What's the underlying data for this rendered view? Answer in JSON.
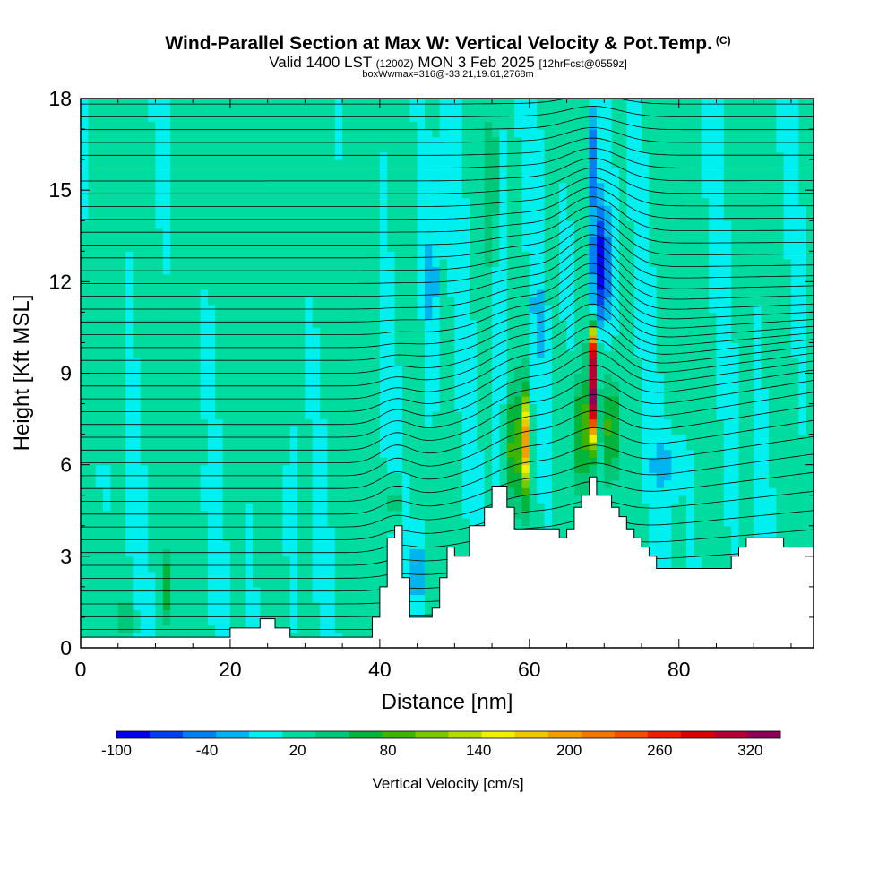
{
  "header": {
    "title": "Wind-Parallel Section at Max W: Vertical Velocity & Pot.Temp.",
    "copyright": "(C)",
    "valid_prefix": "Valid 1400 LST",
    "valid_utc": "(1200Z)",
    "valid_date": "MON 3 Feb 2025",
    "forecast": "[12hrFcst@0559z]",
    "box_info": "boxWwmax=316@-33.21,19.61,2768m"
  },
  "chart_data": {
    "type": "heatmap",
    "xlabel": "Distance [nm]",
    "ylabel": "Height [Kft MSL]",
    "xlim": [
      0,
      98
    ],
    "ylim": [
      0,
      18
    ],
    "x_ticks": [
      0,
      20,
      40,
      60,
      80
    ],
    "y_ticks": [
      0,
      3,
      6,
      9,
      12,
      15,
      18
    ],
    "colorbar": {
      "title": "Vertical Velocity [cm/s]",
      "tick_labels": [
        "-100",
        "-40",
        "20",
        "80",
        "140",
        "200",
        "260",
        "320"
      ],
      "tick_values": [
        -100,
        -40,
        20,
        80,
        140,
        200,
        260,
        320
      ],
      "range": [
        -100,
        340
      ],
      "colors": [
        "#0000f0",
        "#0040f0",
        "#0080f0",
        "#00b4f0",
        "#00f0f0",
        "#00dca0",
        "#00c878",
        "#00b43c",
        "#3cb400",
        "#78c800",
        "#b4dc00",
        "#f0f000",
        "#f0c800",
        "#f0a000",
        "#f07800",
        "#f05000",
        "#f01e00",
        "#dc0000",
        "#b40032",
        "#8c005a"
      ]
    },
    "terrain_profile": [
      {
        "x": 0,
        "h": 0.35
      },
      {
        "x": 20,
        "h": 0.35
      },
      {
        "x": 20,
        "h": 0.65
      },
      {
        "x": 24,
        "h": 0.65
      },
      {
        "x": 24,
        "h": 0.95
      },
      {
        "x": 26,
        "h": 0.95
      },
      {
        "x": 26,
        "h": 0.65
      },
      {
        "x": 28,
        "h": 0.65
      },
      {
        "x": 28,
        "h": 0.35
      },
      {
        "x": 39,
        "h": 0.35
      },
      {
        "x": 39,
        "h": 1.0
      },
      {
        "x": 40,
        "h": 1.0
      },
      {
        "x": 40,
        "h": 2.0
      },
      {
        "x": 41,
        "h": 2.0
      },
      {
        "x": 41,
        "h": 3.6
      },
      {
        "x": 42,
        "h": 3.6
      },
      {
        "x": 42,
        "h": 4.0
      },
      {
        "x": 43,
        "h": 4.0
      },
      {
        "x": 43,
        "h": 2.3
      },
      {
        "x": 44,
        "h": 2.3
      },
      {
        "x": 44,
        "h": 1.0
      },
      {
        "x": 47,
        "h": 1.0
      },
      {
        "x": 47,
        "h": 1.3
      },
      {
        "x": 48,
        "h": 1.3
      },
      {
        "x": 48,
        "h": 2.3
      },
      {
        "x": 49,
        "h": 2.3
      },
      {
        "x": 49,
        "h": 3.3
      },
      {
        "x": 50,
        "h": 3.3
      },
      {
        "x": 50,
        "h": 3.0
      },
      {
        "x": 52,
        "h": 3.0
      },
      {
        "x": 52,
        "h": 4.0
      },
      {
        "x": 54,
        "h": 4.0
      },
      {
        "x": 54,
        "h": 4.6
      },
      {
        "x": 55,
        "h": 4.6
      },
      {
        "x": 55,
        "h": 5.3
      },
      {
        "x": 57,
        "h": 5.3
      },
      {
        "x": 57,
        "h": 4.6
      },
      {
        "x": 58,
        "h": 4.6
      },
      {
        "x": 58,
        "h": 3.9
      },
      {
        "x": 64,
        "h": 3.9
      },
      {
        "x": 64,
        "h": 3.6
      },
      {
        "x": 65,
        "h": 3.6
      },
      {
        "x": 65,
        "h": 3.9
      },
      {
        "x": 66,
        "h": 3.9
      },
      {
        "x": 66,
        "h": 4.6
      },
      {
        "x": 67,
        "h": 4.6
      },
      {
        "x": 67,
        "h": 5.0
      },
      {
        "x": 68,
        "h": 5.0
      },
      {
        "x": 68,
        "h": 5.6
      },
      {
        "x": 69,
        "h": 5.6
      },
      {
        "x": 69,
        "h": 5.0
      },
      {
        "x": 71,
        "h": 5.0
      },
      {
        "x": 71,
        "h": 4.6
      },
      {
        "x": 72,
        "h": 4.6
      },
      {
        "x": 72,
        "h": 4.3
      },
      {
        "x": 73,
        "h": 4.3
      },
      {
        "x": 73,
        "h": 3.9
      },
      {
        "x": 74,
        "h": 3.9
      },
      {
        "x": 74,
        "h": 3.6
      },
      {
        "x": 75,
        "h": 3.6
      },
      {
        "x": 75,
        "h": 3.3
      },
      {
        "x": 76,
        "h": 3.3
      },
      {
        "x": 76,
        "h": 3.0
      },
      {
        "x": 77,
        "h": 3.0
      },
      {
        "x": 77,
        "h": 2.6
      },
      {
        "x": 87,
        "h": 2.6
      },
      {
        "x": 87,
        "h": 3.0
      },
      {
        "x": 88,
        "h": 3.0
      },
      {
        "x": 88,
        "h": 3.3
      },
      {
        "x": 89,
        "h": 3.3
      },
      {
        "x": 89,
        "h": 3.6
      },
      {
        "x": 94,
        "h": 3.6
      },
      {
        "x": 94,
        "h": 3.3
      },
      {
        "x": 98,
        "h": 3.3
      }
    ],
    "velocity_features": [
      {
        "x": 42,
        "h": 4.8,
        "v": 150,
        "sx": 0.4,
        "sh": 0.7
      },
      {
        "x": 45,
        "h": 2.5,
        "v": -60,
        "sx": 0.7,
        "sh": 1.2
      },
      {
        "x": 47,
        "h": 12.0,
        "v": -35,
        "sx": 1.0,
        "sh": 3.0
      },
      {
        "x": 55,
        "h": 15.0,
        "v": 70,
        "sx": 0.6,
        "sh": 3.0
      },
      {
        "x": 56,
        "h": 10.0,
        "v": -60,
        "sx": 0.5,
        "sh": 6.0
      },
      {
        "x": 58,
        "h": 6.5,
        "v": 70,
        "sx": 1.8,
        "sh": 2.0
      },
      {
        "x": 59.5,
        "h": 6.8,
        "v": 150,
        "sx": 0.6,
        "sh": 1.6
      },
      {
        "x": 61,
        "h": 10.5,
        "v": -40,
        "sx": 0.6,
        "sh": 4.0
      },
      {
        "x": 67,
        "h": 7.0,
        "v": 80,
        "sx": 1.2,
        "sh": 2.0
      },
      {
        "x": 68.5,
        "h": 8.2,
        "v": 290,
        "sx": 0.55,
        "sh": 1.4
      },
      {
        "x": 68.5,
        "h": 9.8,
        "v": 180,
        "sx": 0.6,
        "sh": 0.8
      },
      {
        "x": 71,
        "h": 7.2,
        "v": 80,
        "sx": 1.0,
        "sh": 1.6
      },
      {
        "x": 69.5,
        "h": 12.5,
        "v": -110,
        "sx": 1.2,
        "sh": 2.0
      },
      {
        "x": 68.5,
        "h": 16.0,
        "v": -60,
        "sx": 0.6,
        "sh": 1.8
      },
      {
        "x": 78,
        "h": 6.0,
        "v": -30,
        "sx": 2.0,
        "sh": 1.0
      },
      {
        "x": 11.5,
        "h": 2.0,
        "v": 60,
        "sx": 0.4,
        "sh": 1.0
      },
      {
        "x": 15,
        "h": 1.5,
        "v": 40,
        "sx": 0.4,
        "sh": 0.8
      },
      {
        "x": 6,
        "h": 1.0,
        "v": 40,
        "sx": 1.0,
        "sh": 0.7
      }
    ]
  }
}
